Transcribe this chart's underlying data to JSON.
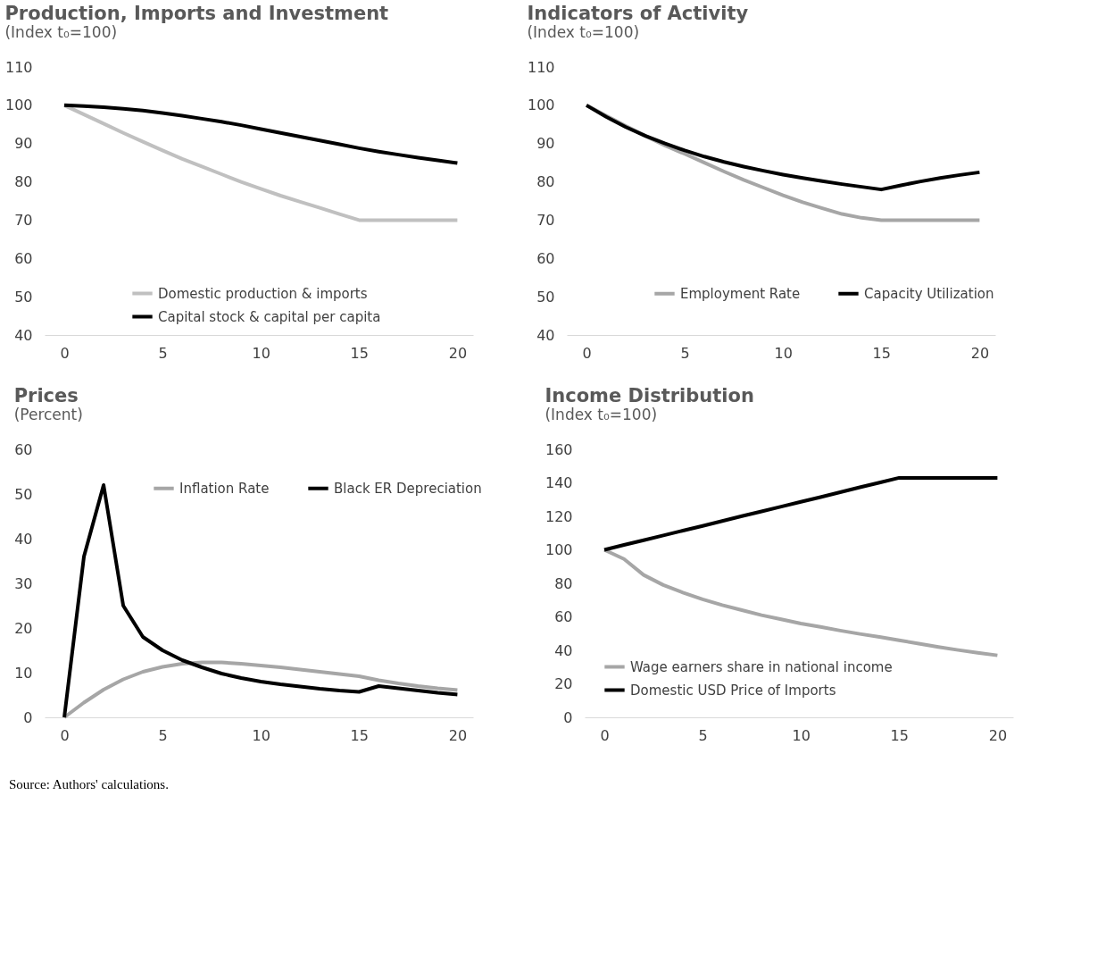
{
  "chart_data": [
    {
      "type": "line",
      "title": "Production, Imports and Investment",
      "subtitle": "(Index t₀=100)",
      "x": [
        0,
        1,
        2,
        3,
        4,
        5,
        6,
        7,
        8,
        9,
        10,
        11,
        12,
        13,
        14,
        15,
        16,
        17,
        18,
        19,
        20
      ],
      "series": [
        {
          "name": "Domestic  production  & imports",
          "color": "#c0c0c0",
          "values": [
            100,
            97.6,
            95.2,
            92.8,
            90.5,
            88.2,
            86,
            84,
            82,
            80,
            78.2,
            76.4,
            74.8,
            73.2,
            71.6,
            70,
            70,
            70,
            70,
            70,
            70
          ]
        },
        {
          "name": "Capital  stock  & capital  per capita",
          "color": "#000000",
          "values": [
            100,
            99.8,
            99.5,
            99.1,
            98.6,
            98,
            97.3,
            96.5,
            95.7,
            94.8,
            93.8,
            92.8,
            91.8,
            90.8,
            89.8,
            88.8,
            87.9,
            87.1,
            86.3,
            85.6,
            84.9
          ]
        }
      ],
      "xlim": [
        -1,
        20.8
      ],
      "xticks": [
        0,
        5,
        10,
        15,
        20
      ],
      "ylim": [
        40,
        110
      ],
      "yticks": [
        40,
        50,
        60,
        70,
        80,
        90,
        100,
        110
      ],
      "grid": false,
      "legend": "bottom",
      "line_style": "solid"
    },
    {
      "type": "line",
      "title": "Indicators of Activity",
      "subtitle": "(Index  t₀=100)",
      "x": [
        0,
        1,
        2,
        3,
        4,
        5,
        6,
        7,
        8,
        9,
        10,
        11,
        12,
        13,
        14,
        15,
        16,
        17,
        18,
        19,
        20
      ],
      "series": [
        {
          "name": "Employment  Rate",
          "color": "#a6a6a6",
          "values": [
            100,
            97.3,
            94.6,
            92,
            89.5,
            87.3,
            85,
            82.7,
            80.5,
            78.5,
            76.5,
            74.7,
            73.1,
            71.6,
            70.6,
            70,
            70,
            70,
            70,
            70,
            70
          ]
        },
        {
          "name": "Capacity  Utilization",
          "color": "#000000",
          "values": [
            100,
            97,
            94.3,
            92,
            90,
            88.2,
            86.6,
            85.2,
            84,
            82.9,
            81.9,
            81,
            80.2,
            79.4,
            78.7,
            78,
            79.1,
            80.1,
            81,
            81.8,
            82.5
          ]
        }
      ],
      "xlim": [
        -1,
        20.8
      ],
      "xticks": [
        0,
        5,
        10,
        15,
        20
      ],
      "ylim": [
        40,
        110
      ],
      "yticks": [
        40,
        50,
        60,
        70,
        80,
        90,
        100,
        110
      ],
      "grid": false,
      "legend": "bottom",
      "line_style": "solid"
    },
    {
      "type": "line",
      "title": "Prices",
      "subtitle": "(Percent)",
      "x": [
        0,
        1,
        2,
        3,
        4,
        5,
        6,
        7,
        8,
        9,
        10,
        11,
        12,
        13,
        14,
        15,
        16,
        17,
        18,
        19,
        20
      ],
      "series": [
        {
          "name": "Inflation  Rate",
          "color": "#a6a6a6",
          "values": [
            0,
            3.3,
            6.2,
            8.5,
            10.2,
            11.3,
            12,
            12.3,
            12.3,
            12,
            11.6,
            11.2,
            10.7,
            10.2,
            9.7,
            9.2,
            8.3,
            7.6,
            7,
            6.5,
            6.1
          ]
        },
        {
          "name": "Black  ER  Depreciation",
          "color": "#000000",
          "values": [
            0,
            36,
            52,
            25,
            18,
            15,
            12.8,
            11.2,
            9.8,
            8.8,
            8,
            7.4,
            6.9,
            6.4,
            6,
            5.7,
            7,
            6.5,
            6,
            5.5,
            5.1
          ]
        }
      ],
      "xlim": [
        -1,
        20.8
      ],
      "xticks": [
        0,
        5,
        10,
        15,
        20
      ],
      "ylim": [
        0,
        60
      ],
      "yticks": [
        0,
        10,
        20,
        30,
        40,
        50,
        60
      ],
      "grid": false,
      "legend": "top",
      "line_style": "solid"
    },
    {
      "type": "line",
      "title": "Income Distribution",
      "subtitle": "(Index  t₀=100)",
      "x": [
        0,
        1,
        2,
        3,
        4,
        5,
        6,
        7,
        8,
        9,
        10,
        11,
        12,
        13,
        14,
        15,
        16,
        17,
        18,
        19,
        20
      ],
      "series": [
        {
          "name": "Wage  earners  share  in national  income",
          "color": "#a6a6a6",
          "values": [
            100,
            94.5,
            85,
            79,
            74.5,
            70.5,
            67,
            64,
            61,
            58.5,
            56,
            54,
            51.8,
            49.8,
            48,
            46,
            44,
            42,
            40.2,
            38.5,
            37
          ]
        },
        {
          "name": "Domestic  USD Price  of Imports",
          "color": "#000000",
          "values": [
            100,
            102.9,
            105.7,
            108.6,
            111.5,
            114.3,
            117.2,
            120.1,
            122.9,
            125.8,
            128.7,
            131.5,
            134.4,
            137.3,
            140.1,
            143,
            143,
            143,
            143,
            143,
            143
          ]
        }
      ],
      "xlim": [
        -1,
        20.8
      ],
      "xticks": [
        0,
        5,
        10,
        15,
        20
      ],
      "ylim": [
        0,
        160
      ],
      "yticks": [
        0,
        20,
        40,
        60,
        80,
        100,
        120,
        140,
        160
      ],
      "grid": false,
      "legend": "bottom left",
      "line_style": "solid",
      "annotations": [
        "Source: Authors' calculations."
      ]
    }
  ]
}
